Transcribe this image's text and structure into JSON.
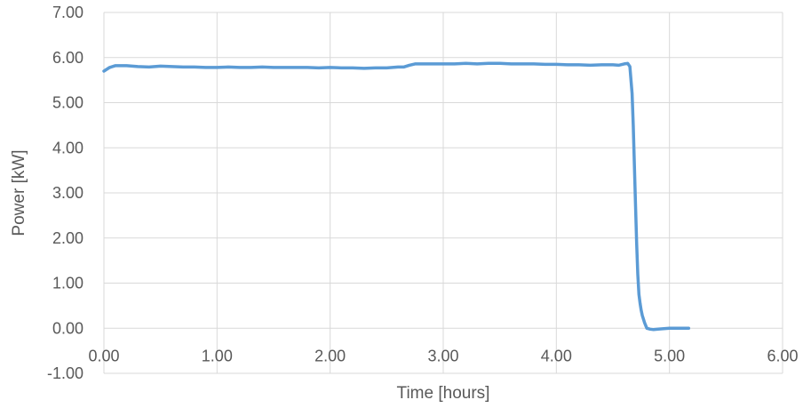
{
  "chart_data": {
    "type": "line",
    "xlabel": "Time [hours]",
    "ylabel": "Power [kW]",
    "xlim": [
      0,
      6
    ],
    "ylim": [
      -1,
      7
    ],
    "xticks": [
      0,
      1,
      2,
      3,
      4,
      5,
      6
    ],
    "yticks": [
      -1,
      0,
      1,
      2,
      3,
      4,
      5,
      6,
      7
    ],
    "xtick_labels": [
      "0.00",
      "1.00",
      "2.00",
      "3.00",
      "4.00",
      "5.00",
      "6.00"
    ],
    "ytick_labels": [
      "-1.00",
      "0.00",
      "1.00",
      "2.00",
      "3.00",
      "4.00",
      "5.00",
      "6.00",
      "7.00"
    ],
    "grid": true,
    "legend": "none",
    "series": [
      {
        "color": "#5b9bd5",
        "x": [
          0.0,
          0.05,
          0.1,
          0.2,
          0.3,
          0.4,
          0.5,
          0.6,
          0.7,
          0.8,
          0.9,
          1.0,
          1.1,
          1.2,
          1.3,
          1.4,
          1.5,
          1.6,
          1.7,
          1.8,
          1.9,
          2.0,
          2.1,
          2.2,
          2.3,
          2.4,
          2.5,
          2.6,
          2.65,
          2.7,
          2.75,
          2.8,
          2.9,
          3.0,
          3.1,
          3.2,
          3.3,
          3.4,
          3.5,
          3.6,
          3.7,
          3.8,
          3.9,
          4.0,
          4.1,
          4.2,
          4.3,
          4.4,
          4.5,
          4.55,
          4.6,
          4.63,
          4.65,
          4.67,
          4.68,
          4.69,
          4.7,
          4.71,
          4.72,
          4.73,
          4.74,
          4.75,
          4.76,
          4.78,
          4.8,
          4.83,
          4.86,
          4.9,
          4.95,
          5.0,
          5.1,
          5.17
        ],
        "y": [
          5.7,
          5.78,
          5.82,
          5.82,
          5.8,
          5.79,
          5.81,
          5.8,
          5.79,
          5.79,
          5.78,
          5.78,
          5.79,
          5.78,
          5.78,
          5.79,
          5.78,
          5.78,
          5.78,
          5.78,
          5.77,
          5.78,
          5.77,
          5.77,
          5.76,
          5.77,
          5.77,
          5.79,
          5.79,
          5.83,
          5.86,
          5.86,
          5.86,
          5.86,
          5.86,
          5.87,
          5.86,
          5.87,
          5.87,
          5.86,
          5.86,
          5.86,
          5.85,
          5.85,
          5.84,
          5.84,
          5.83,
          5.84,
          5.84,
          5.83,
          5.86,
          5.87,
          5.8,
          5.2,
          4.5,
          3.6,
          2.7,
          1.9,
          1.2,
          0.75,
          0.55,
          0.4,
          0.28,
          0.12,
          0.0,
          -0.02,
          -0.03,
          -0.02,
          -0.01,
          0.0,
          0.0,
          0.0
        ]
      }
    ]
  }
}
